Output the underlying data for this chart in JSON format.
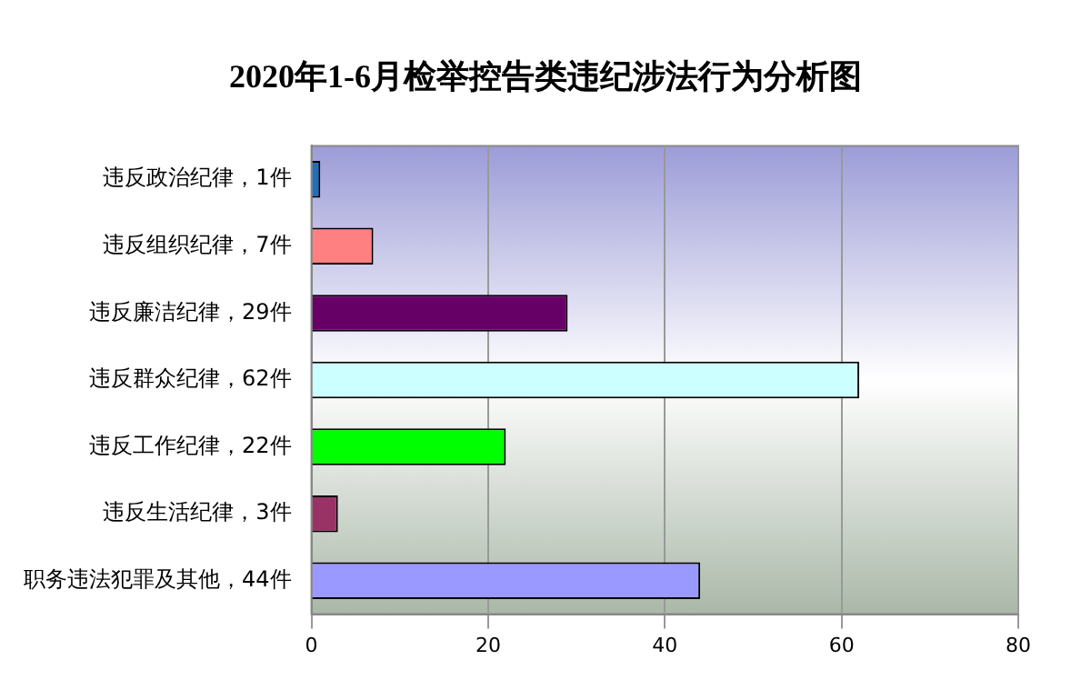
{
  "chart_data": {
    "type": "bar",
    "orientation": "horizontal",
    "title": "2020年1-6月检举控告类违纪涉法行为分析图",
    "categories": [
      "违反政治纪律，1件",
      "违反组织纪律，7件",
      "违反廉洁纪律，29件",
      "违反群众纪律，62件",
      "违反工作纪律，22件",
      "违反生活纪律，3件",
      "职务违法犯罪及其他，44件"
    ],
    "values": [
      1,
      7,
      29,
      62,
      22,
      3,
      44
    ],
    "colors": [
      "#1f6fc0",
      "#ff8080",
      "#660066",
      "#ccffff",
      "#00ff00",
      "#993366",
      "#9999ff"
    ],
    "xlim": [
      0,
      80
    ],
    "xticks": [
      0,
      20,
      40,
      60,
      80
    ],
    "grid": "x",
    "legend": false
  }
}
